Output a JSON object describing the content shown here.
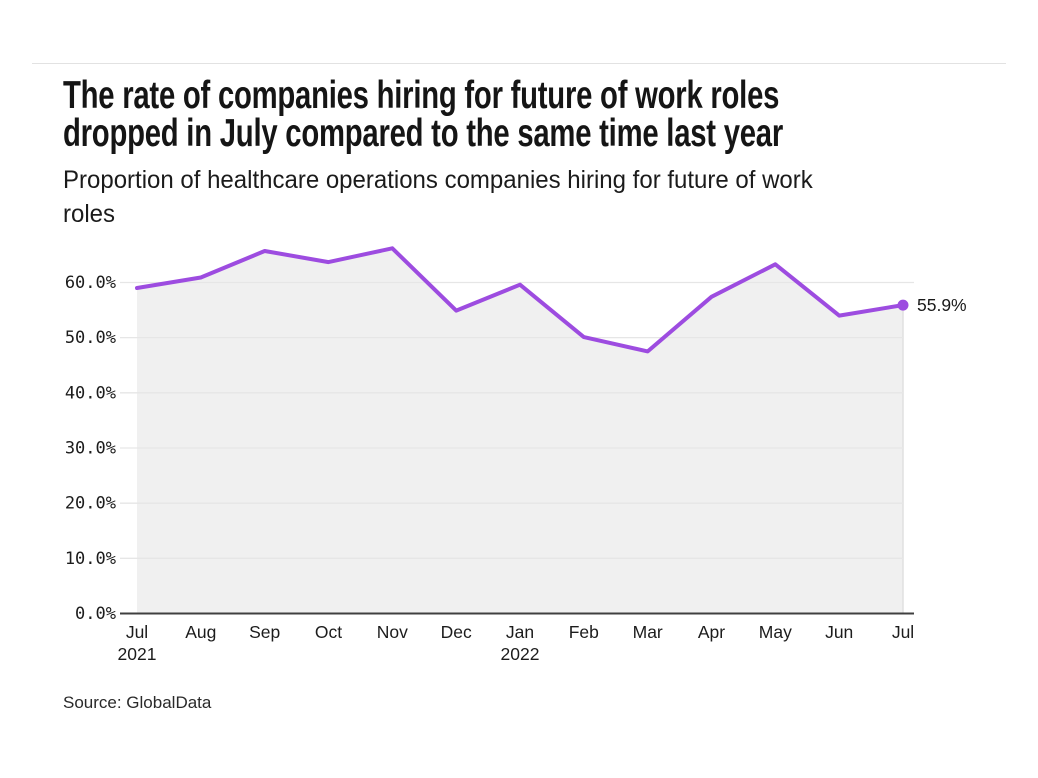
{
  "header": {
    "title_lines": [
      "The rate of companies hiring for future of work roles",
      "dropped in July compared to the same time last year"
    ],
    "subtitle_lines": [
      "Proportion of healthcare operations companies hiring for future of work",
      "roles"
    ]
  },
  "source": {
    "label": "Source: GlobalData"
  },
  "colors": {
    "line": "#9d4ce0",
    "area_fill": "#f0f0f0",
    "area_edge": "#e0e0e0",
    "gridline": "#e6e6e6",
    "axis": "#3f3f3f",
    "divider": "#e2e2e2",
    "text": "#1a1a1a"
  },
  "chart_data": {
    "type": "area",
    "title": "The rate of companies hiring for future of work roles dropped in July compared to the same time last year",
    "subtitle": "Proportion of healthcare operations companies hiring for future of work roles",
    "categories": [
      {
        "month": "Jul",
        "year": "2021"
      },
      {
        "month": "Aug",
        "year": ""
      },
      {
        "month": "Sep",
        "year": ""
      },
      {
        "month": "Oct",
        "year": ""
      },
      {
        "month": "Nov",
        "year": ""
      },
      {
        "month": "Dec",
        "year": ""
      },
      {
        "month": "Jan",
        "year": "2022"
      },
      {
        "month": "Feb",
        "year": ""
      },
      {
        "month": "Mar",
        "year": ""
      },
      {
        "month": "Apr",
        "year": ""
      },
      {
        "month": "May",
        "year": ""
      },
      {
        "month": "Jun",
        "year": ""
      },
      {
        "month": "Jul",
        "year": ""
      }
    ],
    "series": [
      {
        "name": "Proportion of healthcare operations companies hiring for future of work roles",
        "values": [
          59.0,
          60.9,
          65.7,
          63.7,
          66.2,
          54.9,
          59.6,
          50.1,
          47.5,
          57.4,
          63.3,
          54.0,
          55.9
        ]
      }
    ],
    "end_label": "55.9%",
    "y_ticks": [
      "0.0%",
      "10.0%",
      "20.0%",
      "30.0%",
      "40.0%",
      "50.0%",
      "60.0%"
    ],
    "y_tick_values": [
      0,
      10,
      20,
      30,
      40,
      50,
      60
    ],
    "ylim": [
      0,
      68
    ],
    "xlabel": "",
    "ylabel": "",
    "grid": true,
    "legend": false,
    "marker_on_last_point": true
  }
}
